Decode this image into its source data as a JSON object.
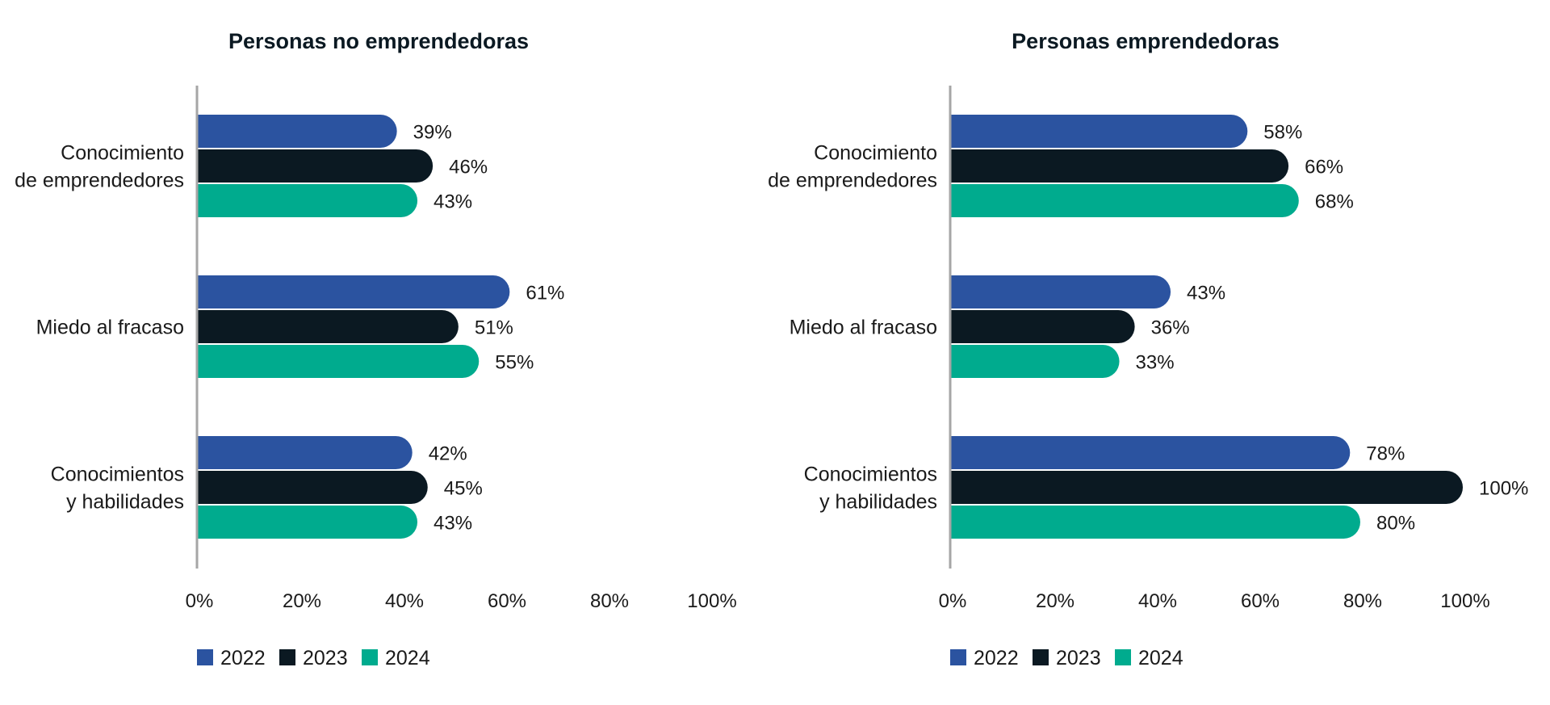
{
  "chart_data": [
    {
      "type": "bar",
      "orientation": "horizontal",
      "title": "Personas no emprendedoras",
      "categories": [
        [
          "Conocimiento",
          "de emprendedores"
        ],
        [
          "Miedo al fracaso"
        ],
        [
          "Conocimientos",
          "y habilidades"
        ]
      ],
      "series": [
        {
          "name": "2022",
          "color": "#2b53a0",
          "values": [
            39,
            61,
            42
          ]
        },
        {
          "name": "2023",
          "color": "#0b1922",
          "values": [
            46,
            51,
            45
          ]
        },
        {
          "name": "2024",
          "color": "#00ab8e",
          "values": [
            43,
            55,
            43
          ]
        }
      ],
      "xlim": [
        0,
        100
      ],
      "xticks": [
        0,
        20,
        40,
        60,
        80,
        100
      ],
      "tick_suffix": "%",
      "data_label_suffix": "%",
      "legend_position": "bottom-left",
      "grid": false
    },
    {
      "type": "bar",
      "orientation": "horizontal",
      "title": "Personas emprendedoras",
      "categories": [
        [
          "Conocimiento",
          "de emprendedores"
        ],
        [
          "Miedo al fracaso"
        ],
        [
          "Conocimientos",
          "y habilidades"
        ]
      ],
      "series": [
        {
          "name": "2022",
          "color": "#2b53a0",
          "values": [
            58,
            43,
            78
          ]
        },
        {
          "name": "2023",
          "color": "#0b1922",
          "values": [
            66,
            36,
            100
          ]
        },
        {
          "name": "2024",
          "color": "#00ab8e",
          "values": [
            68,
            33,
            80
          ]
        }
      ],
      "xlim": [
        0,
        100
      ],
      "xticks": [
        0,
        20,
        40,
        60,
        80,
        100
      ],
      "tick_suffix": "%",
      "data_label_suffix": "%",
      "legend_position": "bottom-left",
      "grid": false
    }
  ]
}
